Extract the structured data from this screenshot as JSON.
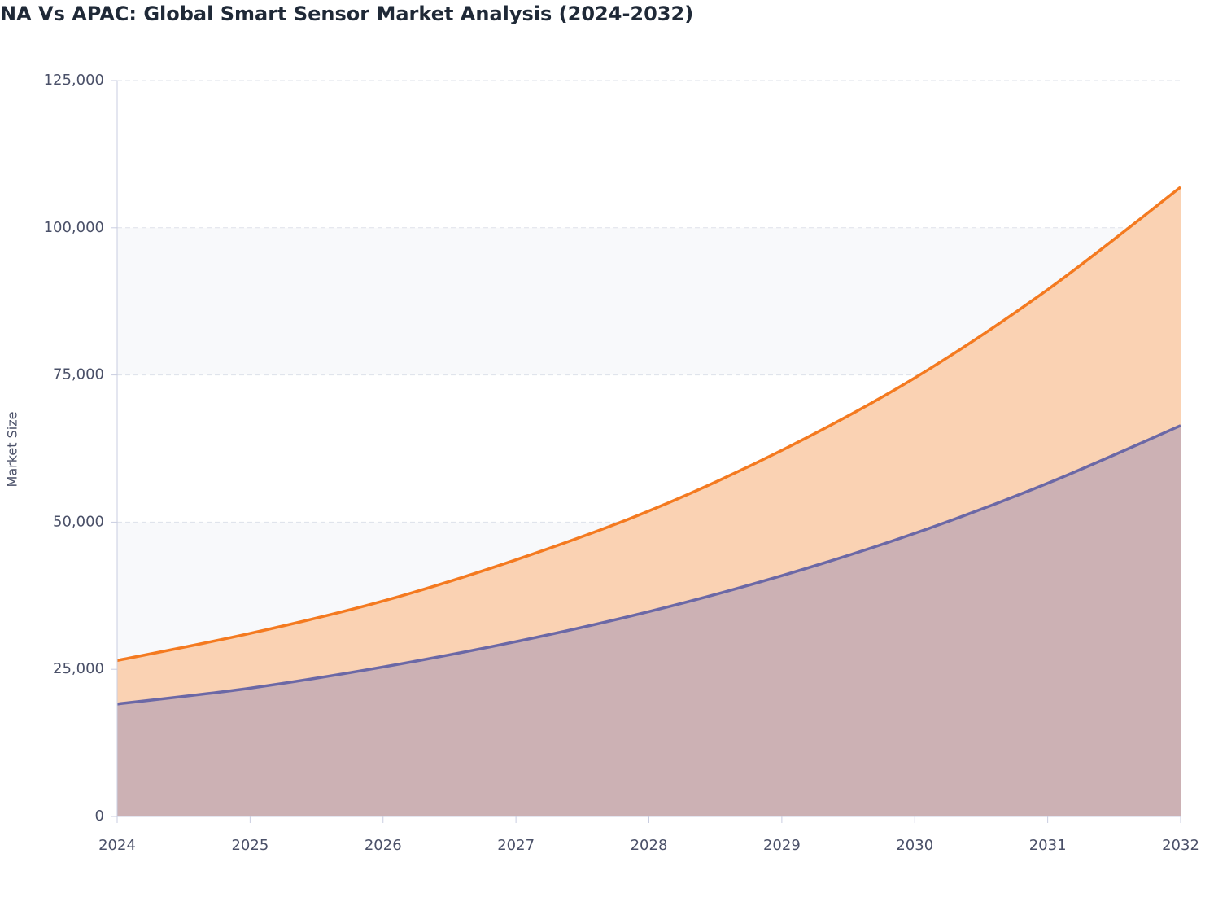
{
  "chart_data": {
    "type": "area",
    "title": "NA Vs APAC: Global Smart Sensor Market Analysis (2024-2032)",
    "y_label": "Market Size",
    "x": [
      2024,
      2025,
      2026,
      2027,
      2028,
      2029,
      2030,
      2031,
      2032
    ],
    "xlim": [
      2024,
      2032
    ],
    "series": [
      {
        "color": "#f47a20",
        "fill": "#fad2b3",
        "values": [
          26500,
          31100,
          36600,
          43600,
          51900,
          62200,
          74500,
          89500,
          106900
        ]
      },
      {
        "color": "#6b68a6",
        "fill": "#ccb1b4",
        "values": [
          19100,
          21800,
          25400,
          29700,
          34800,
          40900,
          48100,
          56600,
          66400
        ]
      }
    ],
    "ylim": [
      0,
      125000
    ],
    "yticks": [
      0,
      {
        "value": 25000,
        "label": "25,000"
      },
      {
        "value": 50000,
        "label": "50,000"
      },
      {
        "value": 75000,
        "label": "75,000"
      },
      {
        "value": 100000,
        "label": "100,000"
      },
      {
        "value": 125000,
        "label": "125,000"
      }
    ],
    "grid": true
  }
}
